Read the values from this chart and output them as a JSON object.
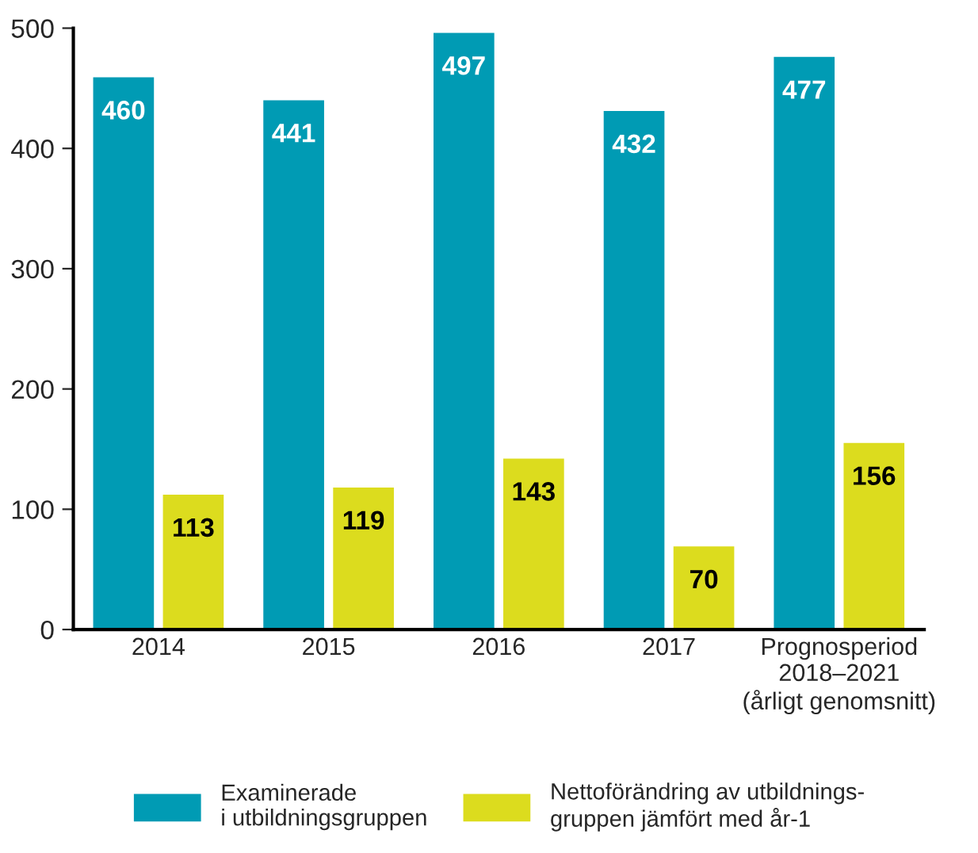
{
  "chart_data": {
    "type": "bar",
    "categories": [
      "2014",
      "2015",
      "2016",
      "2017",
      "Prognosperiod\n2018–2021\n(årligt genomsnitt)"
    ],
    "series": [
      {
        "name": "Examinerade\ni utbildningsgruppen",
        "color": "#009bb4",
        "values": [
          460,
          441,
          497,
          432,
          477
        ]
      },
      {
        "name": "Nettoförändring av utbildnings-\ngruppen jämfört med år-1",
        "color": "#dcdc1e",
        "values": [
          113,
          119,
          143,
          70,
          156
        ]
      }
    ],
    "ylim": [
      0,
      500
    ],
    "yticks": [
      0,
      100,
      200,
      300,
      400,
      500
    ],
    "data_labels": true,
    "grid": false,
    "legend": "bottom"
  }
}
